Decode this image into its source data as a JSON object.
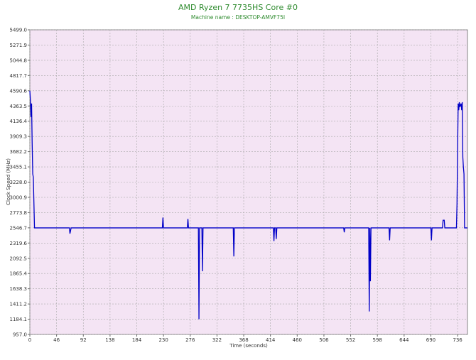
{
  "chart_data": {
    "type": "line",
    "title": "AMD Ryzen 7 7735HS Core #0",
    "subtitle": "Machine name : DESKTOP-AMVF75I",
    "x_label": "Time (seconds)",
    "y_label": "Clock Speed (MHz)",
    "color": "#0000c8",
    "grid": true,
    "xlim": [
      0,
      753
    ],
    "ylim": [
      957,
      5499
    ],
    "xticks": [
      0,
      46,
      92,
      138,
      184,
      230,
      276,
      322,
      368,
      414,
      460,
      506,
      552,
      598,
      644,
      690,
      736
    ],
    "yticks": [
      {
        "value": 957,
        "label": "957.0"
      },
      1184.1,
      1411.2,
      1638.3,
      1865.4,
      2092.5,
      2319.6,
      2546.7,
      2773.8,
      3000.9,
      {
        "value": 3228,
        "label": "3228.0"
      },
      3455.1,
      3682.2,
      3909.3,
      4136.4,
      4363.5,
      4590.6,
      4817.7,
      5044.8,
      5271.9,
      {
        "value": 5499,
        "label": "5499.0"
      }
    ],
    "x": [
      0,
      1,
      2,
      3,
      4,
      5,
      6,
      8,
      68,
      69,
      70,
      71,
      228,
      229,
      230,
      271,
      272,
      273,
      290,
      291,
      292,
      296,
      297,
      298,
      350,
      351,
      352,
      419,
      420,
      421,
      423,
      424,
      425,
      540,
      541,
      542,
      583,
      584,
      585,
      586,
      587,
      618,
      619,
      620,
      690,
      691,
      692,
      710,
      711,
      713,
      714,
      734,
      735,
      736,
      737,
      738,
      739,
      740,
      742,
      743,
      744,
      745,
      746,
      747,
      748,
      753
    ],
    "values": [
      4590,
      4450,
      4200,
      4400,
      3800,
      3350,
      3300,
      2546,
      2546,
      2460,
      2500,
      2546,
      2546,
      2700,
      2546,
      2546,
      2680,
      2546,
      2546,
      1184,
      2546,
      2546,
      1900,
      2546,
      2546,
      2120,
      2546,
      2546,
      2350,
      2546,
      2546,
      2380,
      2546,
      2546,
      2480,
      2546,
      2546,
      1300,
      2546,
      1750,
      2546,
      2546,
      2360,
      2546,
      2546,
      2360,
      2546,
      2546,
      2660,
      2660,
      2546,
      2546,
      2900,
      3700,
      4400,
      4300,
      4420,
      4350,
      4400,
      4300,
      4420,
      3600,
      3450,
      3350,
      2546,
      2546
    ]
  }
}
